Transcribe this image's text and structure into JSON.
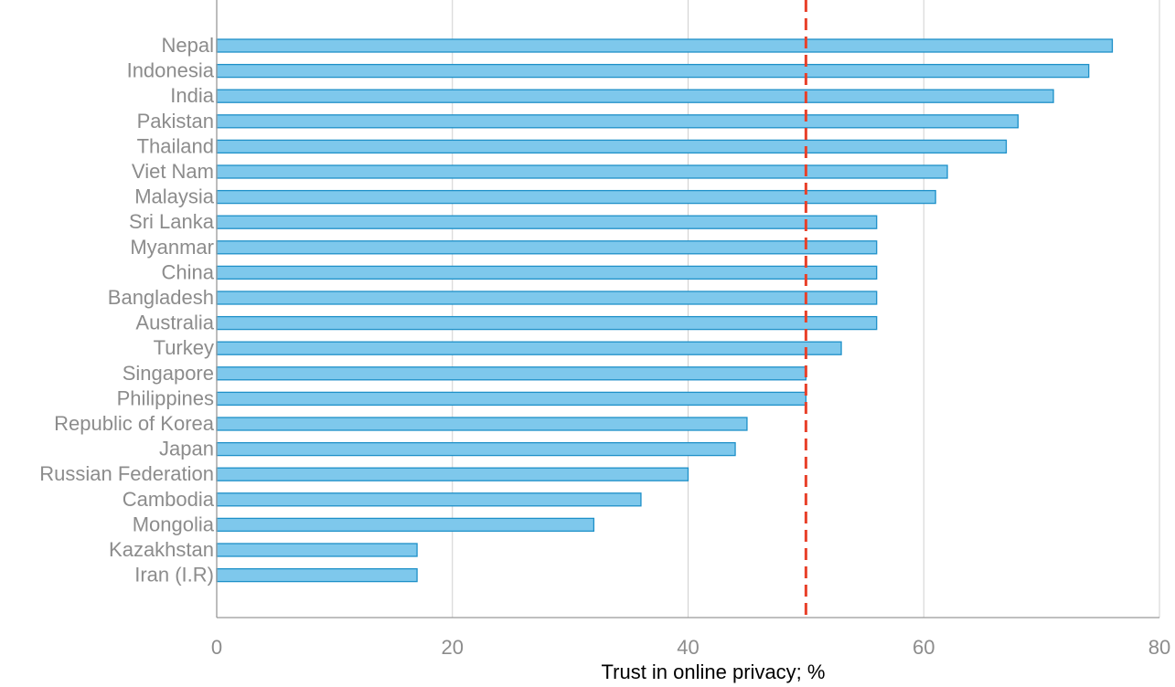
{
  "chart_data": {
    "type": "bar",
    "orientation": "horizontal",
    "title": "",
    "xlabel": "Trust in online privacy; %",
    "ylabel": "",
    "xlim": [
      0,
      80
    ],
    "x_ticks": [
      0,
      20,
      40,
      60,
      80
    ],
    "grid": "vertical",
    "reference_line": {
      "value": 50,
      "style": "dashed",
      "color": "#e8412a"
    },
    "categories": [
      "Nepal",
      "Indonesia",
      "India",
      "Pakistan",
      "Thailand",
      "Viet Nam",
      "Malaysia",
      "Sri Lanka",
      "Myanmar",
      "China",
      "Bangladesh",
      "Australia",
      "Turkey",
      "Singapore",
      "Philippines",
      "Republic of Korea",
      "Japan",
      "Russian Federation",
      "Cambodia",
      "Mongolia",
      "Kazakhstan",
      "Iran (I.R)"
    ],
    "values": [
      76,
      74,
      71,
      68,
      67,
      62,
      61,
      56,
      56,
      56,
      56,
      56,
      53,
      50,
      50,
      45,
      44,
      40,
      36,
      32,
      17,
      17
    ],
    "colors": {
      "bar_fill": "#7ec8ec",
      "bar_stroke": "#1e90c8",
      "grid": "#d0d0d0",
      "axis": "#999999"
    }
  }
}
